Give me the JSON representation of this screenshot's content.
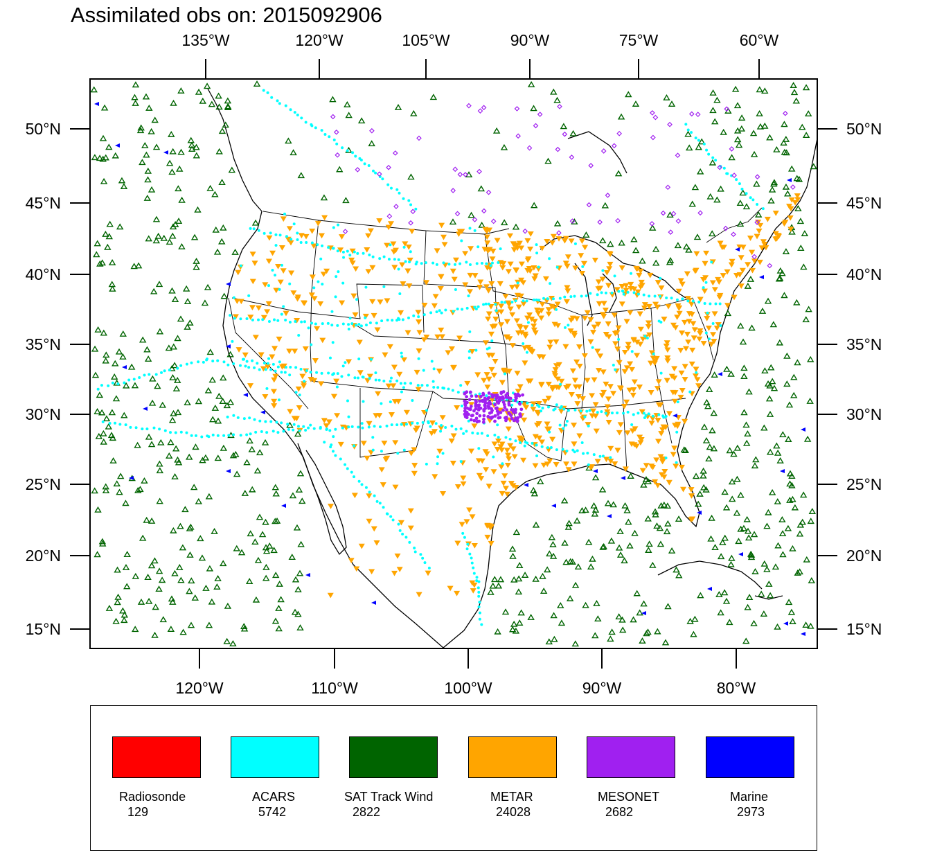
{
  "title": "Assimilated obs on: 2015092906",
  "top_lon_labels": [
    "135°W",
    "120°W",
    "105°W",
    "90°W",
    "75°W",
    "60°W"
  ],
  "bottom_lon_labels": [
    "120°W",
    "110°W",
    "100°W",
    "90°W",
    "80°W"
  ],
  "lat_labels": [
    "50°N",
    "45°N",
    "40°N",
    "35°N",
    "30°N",
    "25°N",
    "20°N",
    "15°N"
  ],
  "legend": [
    {
      "name": "Radiosonde",
      "count": "129",
      "color": "#ff0000"
    },
    {
      "name": "ACARS",
      "count": "5742",
      "color": "#00ffff"
    },
    {
      "name": "SAT Track Wind",
      "count": "2822",
      "color": "#006400"
    },
    {
      "name": "METAR",
      "count": "24028",
      "color": "#ffa500"
    },
    {
      "name": "MESONET",
      "count": "2682",
      "color": "#a020f0"
    },
    {
      "name": "Marine",
      "count": "2973",
      "color": "#0000ff"
    }
  ],
  "marker_colors": {
    "acars": "#00ffff",
    "sat_track_wind": "#006400",
    "metar": "#ffa500",
    "mesonet": "#a020f0",
    "marine": "#0000ff"
  }
}
